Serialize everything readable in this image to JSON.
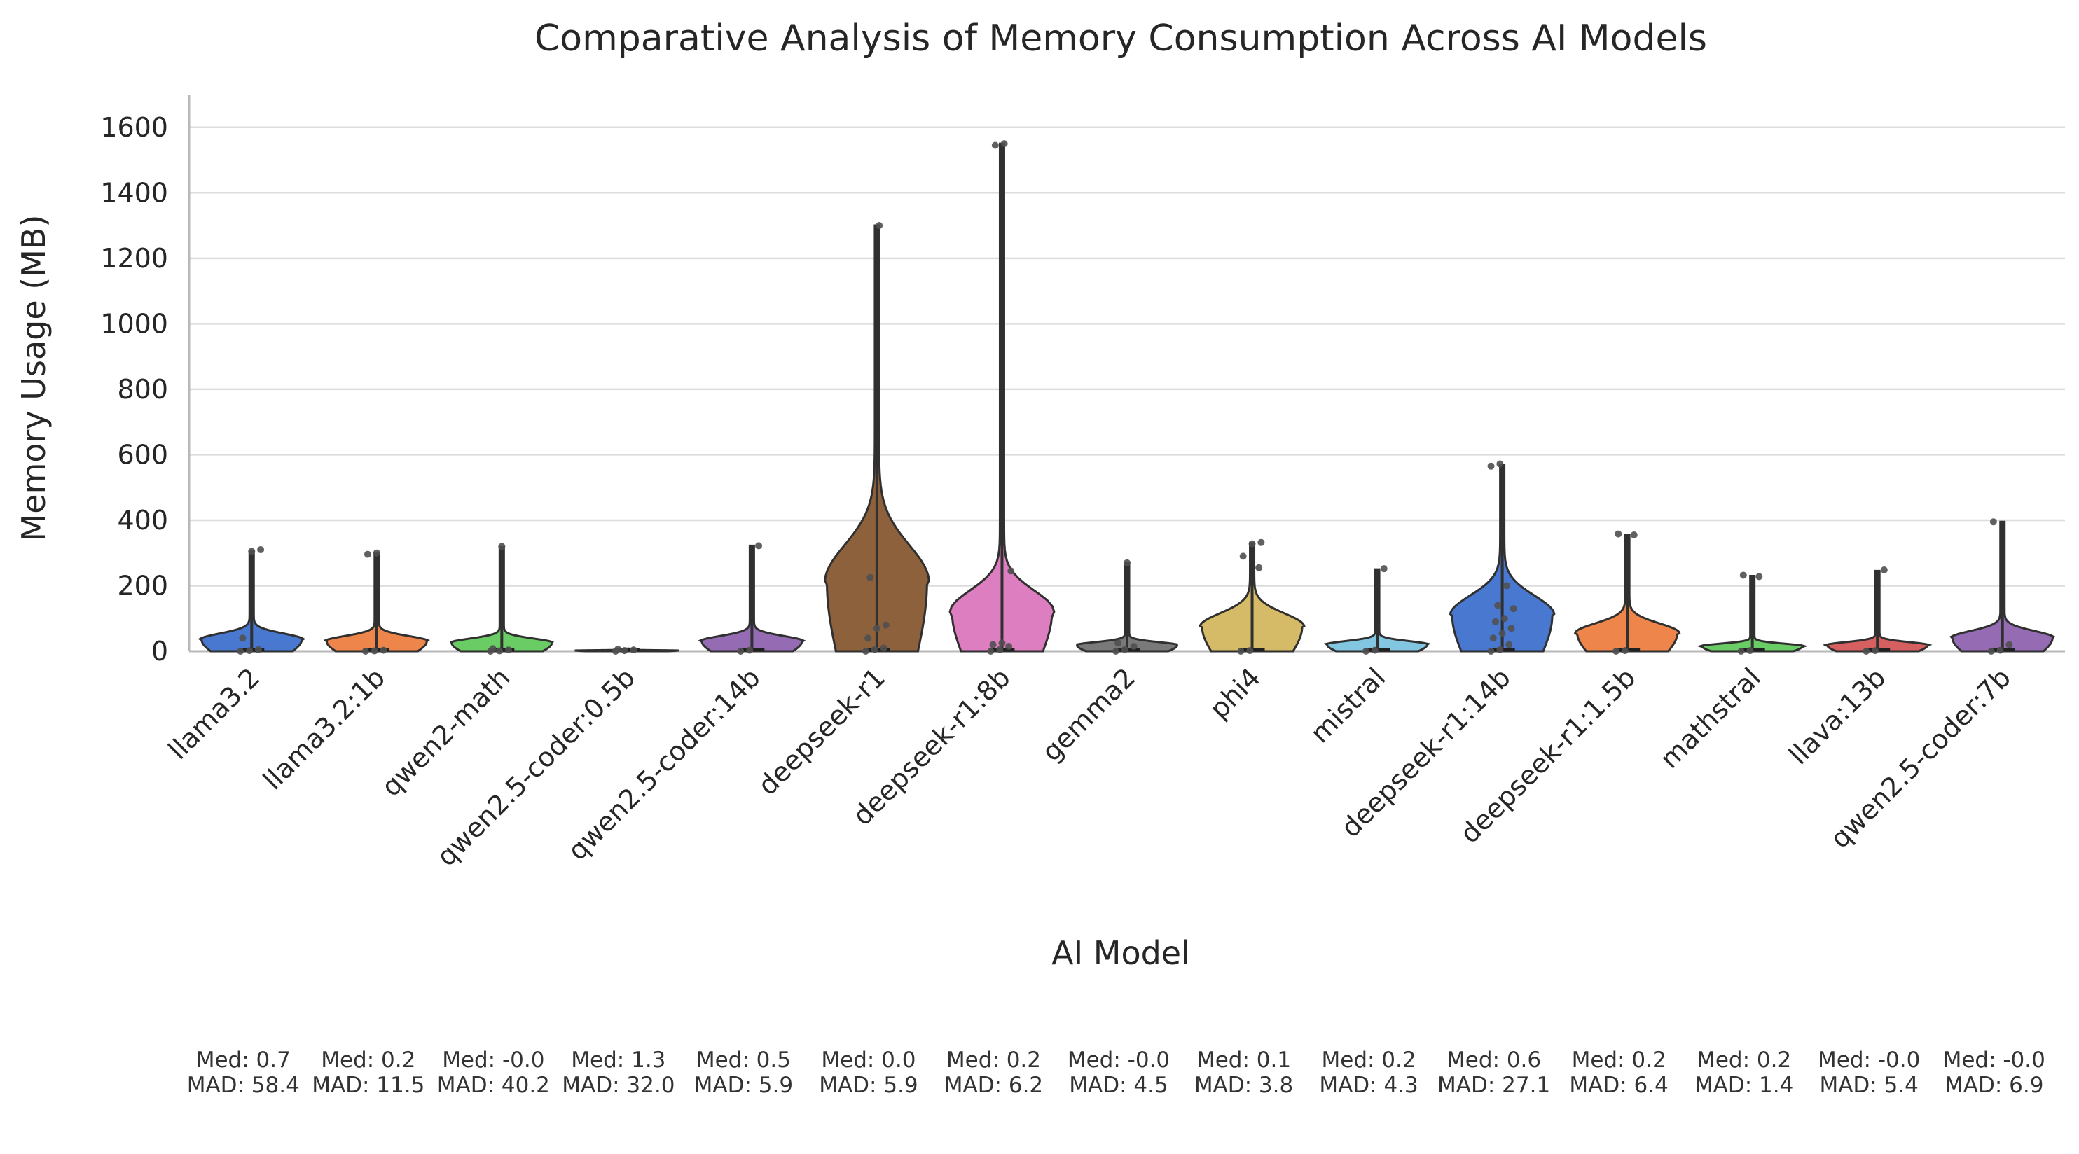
{
  "chart_data": {
    "type": "violin",
    "title": "Comparative Analysis of Memory Consumption Across AI Models",
    "xlabel": "AI Model",
    "ylabel": "Memory Usage (MB)",
    "ylim": [
      0,
      1700
    ],
    "yticks": [
      0,
      200,
      400,
      600,
      800,
      1000,
      1200,
      1400,
      1600
    ],
    "grid": "horizontal",
    "categories": [
      "llama3.2",
      "llama3.2:1b",
      "qwen2-math",
      "qwen2.5-coder:0.5b",
      "qwen2.5-coder:14b",
      "deepseek-r1",
      "deepseek-r1:8b",
      "gemma2",
      "phi4",
      "mistral",
      "deepseek-r1:14b",
      "deepseek-r1:1.5b",
      "mathstral",
      "llava:13b",
      "qwen2.5-coder:7b"
    ],
    "colors": [
      "#4878d0",
      "#ee854a",
      "#6acc64",
      "#d65f5f",
      "#956cb4",
      "#8c613c",
      "#dc7ec0",
      "#797979",
      "#d5bb67",
      "#82c6e2",
      "#4878d0",
      "#ee854a",
      "#6acc64",
      "#d65f5f",
      "#956cb4"
    ],
    "series": [
      {
        "model": "llama3.2",
        "max": 305,
        "density_peak": 35,
        "peak_halfwidth": 0.4,
        "points": [
          0,
          2,
          5,
          40,
          305,
          310
        ]
      },
      {
        "model": "llama3.2:1b",
        "max": 298,
        "density_peak": 30,
        "peak_halfwidth": 0.4,
        "points": [
          0,
          1,
          3,
          296,
          300
        ]
      },
      {
        "model": "qwen2-math",
        "max": 318,
        "density_peak": 25,
        "peak_halfwidth": 0.4,
        "points": [
          0,
          1,
          4,
          8,
          320
        ]
      },
      {
        "model": "qwen2.5-coder:0.5b",
        "max": 8,
        "density_peak": 2,
        "peak_halfwidth": 0.4,
        "points": [
          0,
          2,
          4,
          6
        ]
      },
      {
        "model": "qwen2.5-coder:14b",
        "max": 322,
        "density_peak": 30,
        "peak_halfwidth": 0.4,
        "points": [
          0,
          3,
          322
        ]
      },
      {
        "model": "deepseek-r1",
        "max": 1300,
        "density_peak": 210,
        "peak_halfwidth": 0.4,
        "points": [
          0,
          5,
          10,
          40,
          70,
          80,
          225,
          1300
        ]
      },
      {
        "model": "deepseek-r1:8b",
        "max": 1550,
        "density_peak": 120,
        "peak_halfwidth": 0.4,
        "points": [
          0,
          5,
          15,
          20,
          25,
          245,
          1545,
          1550
        ]
      },
      {
        "model": "gemma2",
        "max": 270,
        "density_peak": 18,
        "peak_halfwidth": 0.4,
        "points": [
          0,
          5,
          15,
          25,
          270
        ]
      },
      {
        "model": "phi4",
        "max": 330,
        "density_peak": 75,
        "peak_halfwidth": 0.4,
        "points": [
          0,
          2,
          255,
          290,
          328,
          332
        ]
      },
      {
        "model": "mistral",
        "max": 250,
        "density_peak": 20,
        "peak_halfwidth": 0.4,
        "points": [
          0,
          3,
          252
        ]
      },
      {
        "model": "deepseek-r1:14b",
        "max": 570,
        "density_peak": 110,
        "peak_halfwidth": 0.4,
        "points": [
          0,
          5,
          20,
          40,
          55,
          70,
          90,
          100,
          130,
          140,
          200,
          565,
          572
        ]
      },
      {
        "model": "deepseek-r1:1.5b",
        "max": 355,
        "density_peak": 55,
        "peak_halfwidth": 0.4,
        "points": [
          0,
          2,
          355,
          358
        ]
      },
      {
        "model": "mathstral",
        "max": 230,
        "density_peak": 15,
        "peak_halfwidth": 0.4,
        "points": [
          0,
          2,
          228,
          232
        ]
      },
      {
        "model": "llava:13b",
        "max": 245,
        "density_peak": 18,
        "peak_halfwidth": 0.4,
        "points": [
          0,
          2,
          248
        ]
      },
      {
        "model": "qwen2.5-coder:7b",
        "max": 395,
        "density_peak": 40,
        "peak_halfwidth": 0.4,
        "points": [
          0,
          3,
          20,
          395
        ]
      }
    ],
    "stats": [
      {
        "med": "Med: 0.7",
        "mad": "MAD: 58.4"
      },
      {
        "med": "Med: 0.2",
        "mad": "MAD: 11.5"
      },
      {
        "med": "Med: -0.0",
        "mad": "MAD: 40.2"
      },
      {
        "med": "Med: 1.3",
        "mad": "MAD: 32.0"
      },
      {
        "med": "Med: 0.5",
        "mad": "MAD: 5.9"
      },
      {
        "med": "Med: 0.0",
        "mad": "MAD: 5.9"
      },
      {
        "med": "Med: 0.2",
        "mad": "MAD: 6.2"
      },
      {
        "med": "Med: -0.0",
        "mad": "MAD: 4.5"
      },
      {
        "med": "Med: 0.1",
        "mad": "MAD: 3.8"
      },
      {
        "med": "Med: 0.2",
        "mad": "MAD: 4.3"
      },
      {
        "med": "Med: 0.6",
        "mad": "MAD: 27.1"
      },
      {
        "med": "Med: 0.2",
        "mad": "MAD: 6.4"
      },
      {
        "med": "Med: 0.2",
        "mad": "MAD: 1.4"
      },
      {
        "med": "Med: -0.0",
        "mad": "MAD: 5.4"
      },
      {
        "med": "Med: -0.0",
        "mad": "MAD: 6.9"
      }
    ]
  }
}
